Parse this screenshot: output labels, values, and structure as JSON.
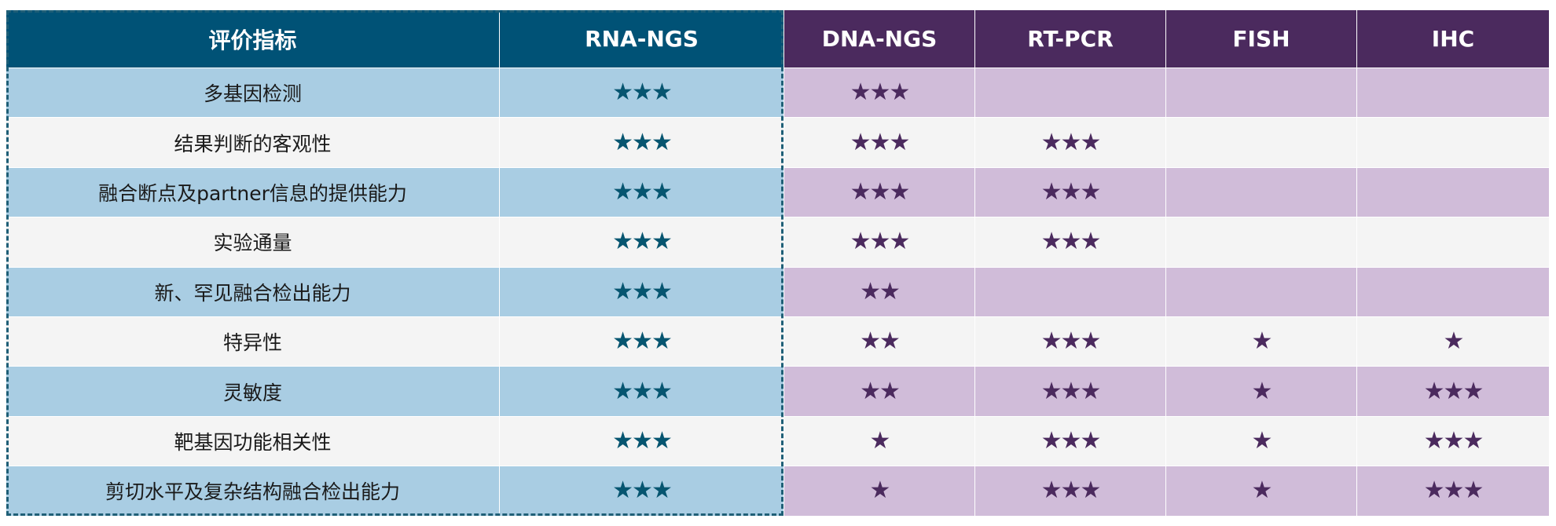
{
  "header": [
    "评价指标",
    "RNA-NGS",
    "DNA-NGS",
    "RT-PCR",
    "FISH",
    "IHC"
  ],
  "rows": [
    {
      "label": "多基因检测",
      "ratings": [
        3,
        3,
        0,
        0,
        0
      ],
      "stars": [
        "★★★",
        "★★★",
        "",
        "",
        ""
      ]
    },
    {
      "label": "结果判断的客观性",
      "ratings": [
        3,
        3,
        3,
        0,
        0
      ],
      "stars": [
        "★★★",
        "★★★",
        "★★★",
        "",
        ""
      ]
    },
    {
      "label": "融合断点及partner信息的提供能力",
      "ratings": [
        3,
        3,
        3,
        0,
        0
      ],
      "stars": [
        "★★★",
        "★★★",
        "★★★",
        "",
        ""
      ]
    },
    {
      "label": "实验通量",
      "ratings": [
        3,
        3,
        3,
        0,
        0
      ],
      "stars": [
        "★★★",
        "★★★",
        "★★★",
        "",
        ""
      ]
    },
    {
      "label": "新、罕见融合检出能力",
      "ratings": [
        3,
        2,
        0,
        0,
        0
      ],
      "stars": [
        "★★★",
        "★★",
        "",
        "",
        ""
      ]
    },
    {
      "label": "特异性",
      "ratings": [
        3,
        2,
        3,
        1,
        1
      ],
      "stars": [
        "★★★",
        "★★",
        "★★★",
        "★",
        "★"
      ]
    },
    {
      "label": "灵敏度",
      "ratings": [
        3,
        2,
        3,
        1,
        3
      ],
      "stars": [
        "★★★",
        "★★",
        "★★★",
        "★",
        "★★★"
      ]
    },
    {
      "label": "靶基因功能相关性",
      "ratings": [
        3,
        1,
        3,
        1,
        3
      ],
      "stars": [
        "★★★",
        "★",
        "★★★",
        "★",
        "★★★"
      ]
    },
    {
      "label": "剪切水平及复杂结构融合检出能力",
      "ratings": [
        3,
        1,
        3,
        1,
        3
      ],
      "stars": [
        "★★★",
        "★",
        "★★★",
        "★",
        "★★★"
      ]
    }
  ],
  "colors": {
    "header_blue": "#005276",
    "header_purple": "#4b2a5e",
    "row_blue": "#a9cde3",
    "row_purple": "#d0bcd9",
    "row_alt": "#f4f4f4",
    "star_blue": "#065570",
    "star_purple": "#4b2a5e"
  }
}
